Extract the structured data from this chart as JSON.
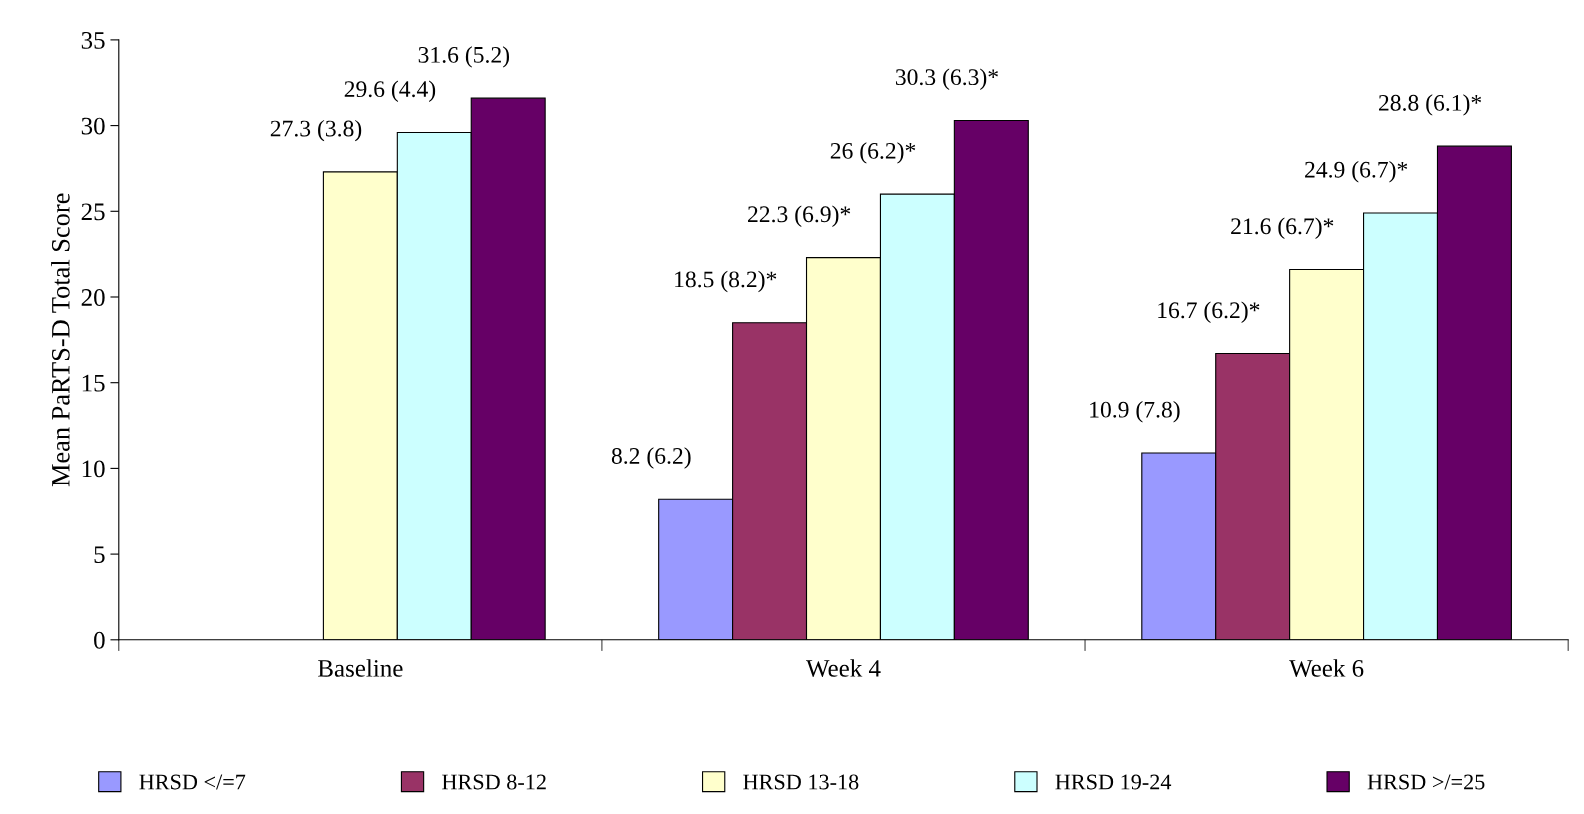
{
  "chart_data": {
    "type": "bar",
    "ylabel": "Mean PaRTS-D Total Score",
    "categories": [
      "Baseline",
      "Week 4",
      "Week 6"
    ],
    "series": [
      {
        "name": "HRSD </=7",
        "color": "#9999ff",
        "values": [
          null,
          8.2,
          10.9
        ],
        "value_labels": [
          null,
          "8.2 (6.2)",
          "10.9 (7.8)"
        ]
      },
      {
        "name": "HRSD 8-12",
        "color": "#993366",
        "values": [
          null,
          18.5,
          16.7
        ],
        "value_labels": [
          null,
          "18.5 (8.2)*",
          "16.7 (6.2)*"
        ]
      },
      {
        "name": "HRSD 13-18",
        "color": "#ffffcc",
        "values": [
          27.3,
          22.3,
          21.6
        ],
        "value_labels": [
          "27.3 (3.8)",
          "22.3 (6.9)*",
          "21.6 (6.7)*"
        ]
      },
      {
        "name": "HRSD 19-24",
        "color": "#ccffff",
        "values": [
          29.6,
          26,
          24.9
        ],
        "value_labels": [
          "29.6 (4.4)",
          "26 (6.2)*",
          "24.9 (6.7)*"
        ]
      },
      {
        "name": "HRSD >/=25",
        "color": "#660066",
        "values": [
          31.6,
          30.3,
          28.8
        ],
        "value_labels": [
          "31.6 (5.2)",
          "30.3 (6.3)*",
          "28.8 (6.1)*"
        ]
      }
    ],
    "ylim": [
      0,
      35
    ],
    "yticks": [
      0,
      5,
      10,
      15,
      20,
      25,
      30,
      35
    ],
    "grid": false,
    "legend": "bottom"
  }
}
